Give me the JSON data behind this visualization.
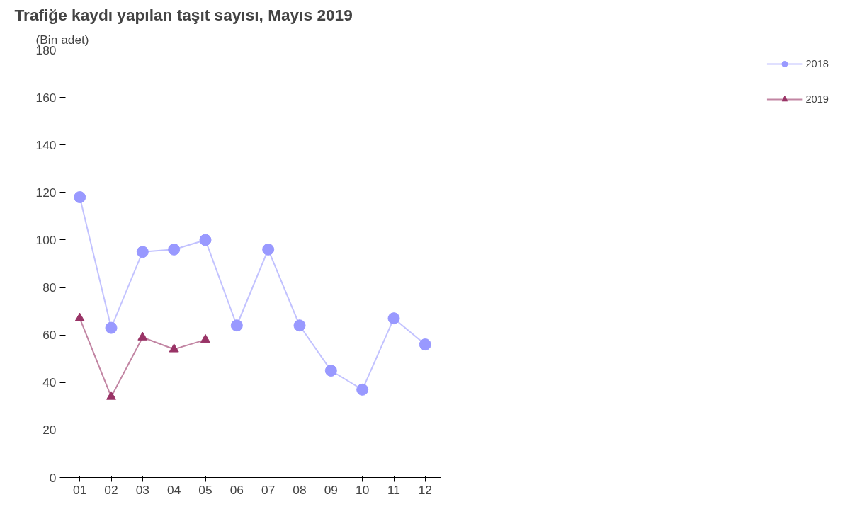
{
  "chart_data": {
    "type": "line",
    "title": "Trafiğe kaydı yapılan taşıt sayısı, Mayıs 2019",
    "ylabel": "(Bin adet)",
    "categories": [
      "01",
      "02",
      "03",
      "04",
      "05",
      "06",
      "07",
      "08",
      "09",
      "10",
      "11",
      "12"
    ],
    "series": [
      {
        "name": "2018",
        "color": "#9999ff",
        "marker": "circle",
        "values": [
          118,
          63,
          95,
          96,
          100,
          64,
          96,
          64,
          45,
          37,
          67,
          56
        ]
      },
      {
        "name": "2019",
        "color": "#993366",
        "marker": "triangle",
        "values": [
          67,
          34,
          59,
          54,
          58,
          null,
          null,
          null,
          null,
          null,
          null,
          null
        ]
      }
    ],
    "ylim": [
      0,
      180
    ],
    "yticks": [
      0,
      20,
      40,
      60,
      80,
      100,
      120,
      140,
      160,
      180
    ],
    "grid": false,
    "legend": "right"
  }
}
